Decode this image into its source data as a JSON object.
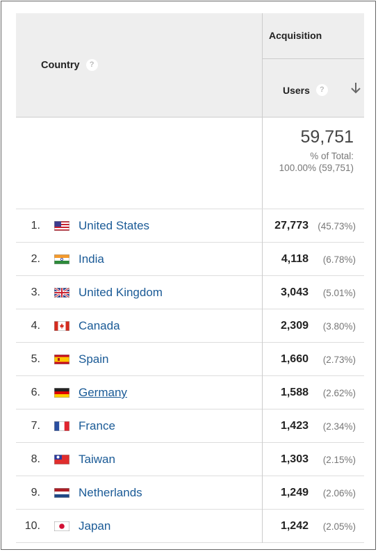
{
  "header": {
    "country_label": "Country",
    "help_glyph": "?",
    "group_label": "Acquisition",
    "users_label": "Users",
    "sort_icon": "arrow-down-icon"
  },
  "totals": {
    "value": "59,751",
    "pct_label": "% of Total:",
    "pct_value": "100.00% (59,751)"
  },
  "rows": [
    {
      "rank": "1.",
      "flag": "us",
      "country": "United States",
      "users": "27,773",
      "pct": "(45.73%)"
    },
    {
      "rank": "2.",
      "flag": "in",
      "country": "India",
      "users": "4,118",
      "pct": "(6.78%)"
    },
    {
      "rank": "3.",
      "flag": "gb",
      "country": "United Kingdom",
      "users": "3,043",
      "pct": "(5.01%)"
    },
    {
      "rank": "4.",
      "flag": "ca",
      "country": "Canada",
      "users": "2,309",
      "pct": "(3.80%)"
    },
    {
      "rank": "5.",
      "flag": "es",
      "country": "Spain",
      "users": "1,660",
      "pct": "(2.73%)"
    },
    {
      "rank": "6.",
      "flag": "de",
      "country": "Germany",
      "users": "1,588",
      "pct": "(2.62%)"
    },
    {
      "rank": "7.",
      "flag": "fr",
      "country": "France",
      "users": "1,423",
      "pct": "(2.34%)"
    },
    {
      "rank": "8.",
      "flag": "tw",
      "country": "Taiwan",
      "users": "1,303",
      "pct": "(2.15%)"
    },
    {
      "rank": "9.",
      "flag": "nl",
      "country": "Netherlands",
      "users": "1,249",
      "pct": "(2.06%)"
    },
    {
      "rank": "10.",
      "flag": "jp",
      "country": "Japan",
      "users": "1,242",
      "pct": "(2.05%)"
    }
  ],
  "colors": {
    "link": "#1a5a96",
    "header_bg": "#eeeeee"
  }
}
